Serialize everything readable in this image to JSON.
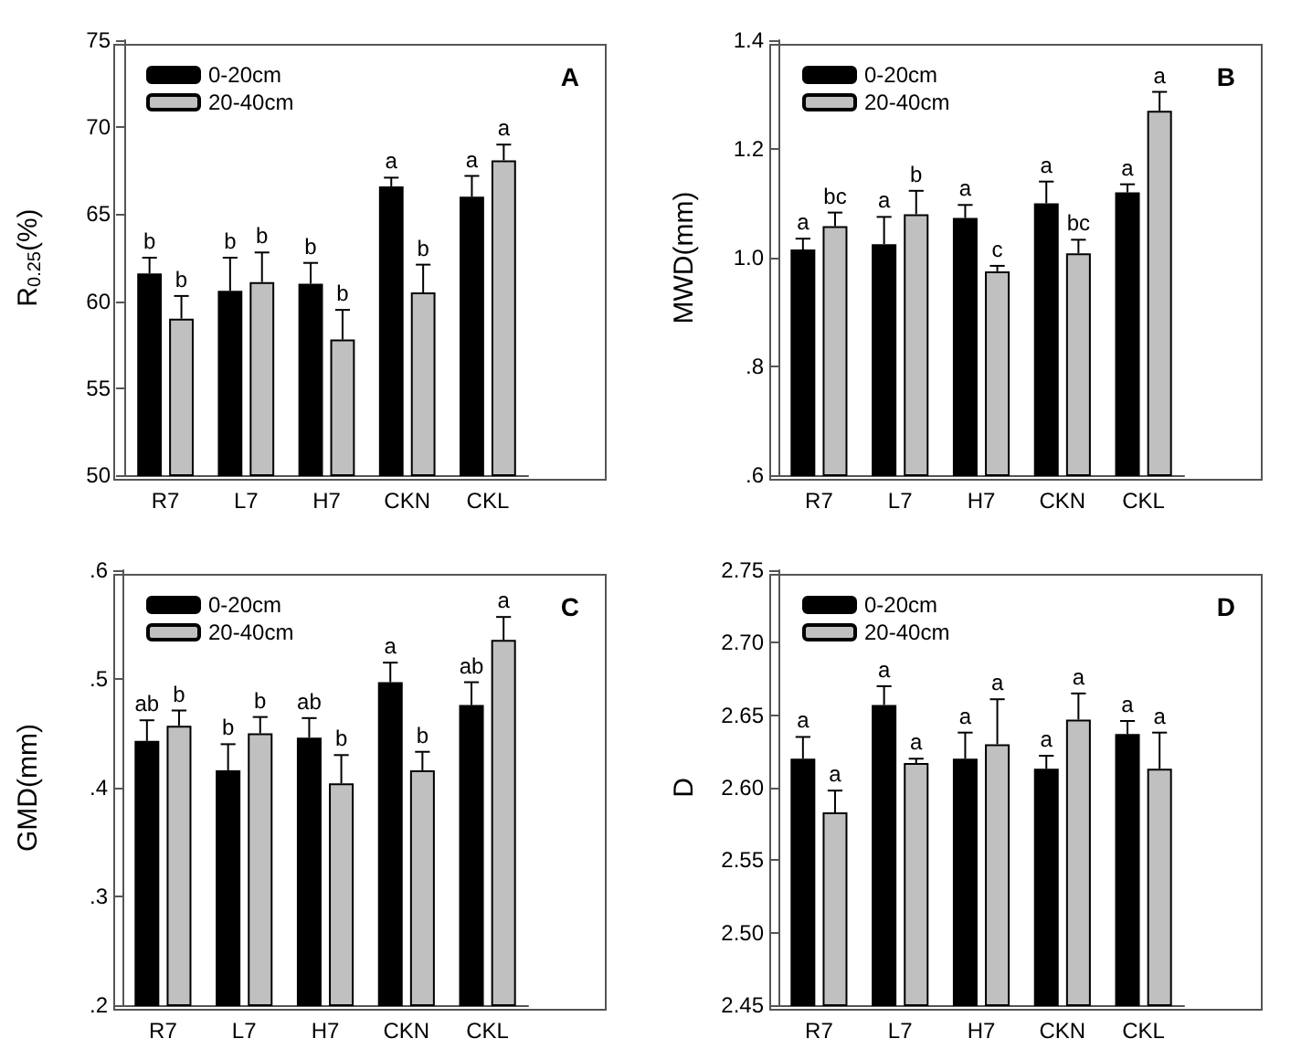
{
  "chart_data": [
    {
      "type": "bar",
      "categories": [
        "R7",
        "L7",
        "H7",
        "CKN",
        "CKL"
      ],
      "ylabel": "R$_{0.25}$(%)",
      "annotations": [
        "A"
      ],
      "ylim": [
        50,
        75
      ],
      "yticks": [
        50,
        55,
        60,
        65,
        70,
        75
      ],
      "grid": false,
      "legend": "top left",
      "series": [
        {
          "name": "0-20cm",
          "color": "#000000",
          "values": [
            61.6,
            60.6,
            61.0,
            66.6,
            66.0
          ],
          "errors": [
            0.9,
            1.9,
            1.2,
            0.5,
            1.2
          ],
          "value_labels": [
            "b",
            "b",
            "b",
            "a",
            "a"
          ]
        },
        {
          "name": "20-40cm",
          "color": "#c0c0c0",
          "values": [
            59.0,
            61.1,
            57.8,
            60.5,
            68.1
          ],
          "errors": [
            1.3,
            1.7,
            1.7,
            1.6,
            0.9
          ],
          "value_labels": [
            "b",
            "b",
            "b",
            "b",
            "a"
          ]
        }
      ]
    },
    {
      "type": "bar",
      "categories": [
        "R7",
        "L7",
        "H7",
        "CKN",
        "CKL"
      ],
      "ylabel": "MWD(mm)",
      "annotations": [
        "B"
      ],
      "ylim": [
        0.6,
        1.4
      ],
      "yticks": [
        {
          "value": 0.6,
          "label": ".6"
        },
        {
          "value": 0.8,
          "label": ".8"
        },
        {
          "value": 1.0,
          "label": "1.0"
        },
        {
          "value": 1.2,
          "label": "1.2"
        },
        {
          "value": 1.4,
          "label": "1.4"
        }
      ],
      "grid": false,
      "legend": "top left",
      "series": [
        {
          "name": "0-20cm",
          "color": "#000000",
          "values": [
            1.015,
            1.025,
            1.073,
            1.1,
            1.12
          ],
          "errors": [
            0.02,
            0.05,
            0.024,
            0.04,
            0.015
          ],
          "value_labels": [
            "a",
            "a",
            "a",
            "a",
            "a"
          ]
        },
        {
          "name": "20-40cm",
          "color": "#c0c0c0",
          "values": [
            1.058,
            1.08,
            0.975,
            1.008,
            1.27
          ],
          "errors": [
            0.025,
            0.043,
            0.01,
            0.025,
            0.035
          ],
          "value_labels": [
            "bc",
            "b",
            "c",
            "bc",
            "a"
          ]
        }
      ]
    },
    {
      "type": "bar",
      "categories": [
        "R7",
        "L7",
        "H7",
        "CKN",
        "CKL"
      ],
      "ylabel": "GMD(mm)",
      "annotations": [
        "C"
      ],
      "ylim": [
        0.2,
        0.6
      ],
      "yticks": [
        {
          "value": 0.2,
          "label": ".2"
        },
        {
          "value": 0.3,
          "label": ".3"
        },
        {
          "value": 0.4,
          "label": ".4"
        },
        {
          "value": 0.5,
          "label": ".5"
        },
        {
          "value": 0.6,
          "label": ".6"
        }
      ],
      "grid": false,
      "legend": "top left",
      "series": [
        {
          "name": "0-20cm",
          "color": "#000000",
          "values": [
            0.443,
            0.416,
            0.446,
            0.497,
            0.476
          ],
          "errors": [
            0.019,
            0.024,
            0.018,
            0.018,
            0.021
          ],
          "value_labels": [
            "ab",
            "b",
            "ab",
            "a",
            "ab"
          ]
        },
        {
          "name": "20-40cm",
          "color": "#c0c0c0",
          "values": [
            0.457,
            0.45,
            0.404,
            0.416,
            0.536
          ],
          "errors": [
            0.014,
            0.015,
            0.026,
            0.017,
            0.021
          ],
          "value_labels": [
            "b",
            "b",
            "b",
            "b",
            "a"
          ]
        }
      ]
    },
    {
      "type": "bar",
      "categories": [
        "R7",
        "L7",
        "H7",
        "CKN",
        "CKL"
      ],
      "ylabel": "D",
      "annotations": [
        "D"
      ],
      "ylim": [
        2.45,
        2.75
      ],
      "yticks": [
        {
          "value": 2.45,
          "label": "2.45"
        },
        {
          "value": 2.5,
          "label": "2.50"
        },
        {
          "value": 2.55,
          "label": "2.55"
        },
        {
          "value": 2.6,
          "label": "2.60"
        },
        {
          "value": 2.65,
          "label": "2.65"
        },
        {
          "value": 2.7,
          "label": "2.70"
        },
        {
          "value": 2.75,
          "label": "2.75"
        }
      ],
      "grid": false,
      "legend": "top left",
      "series": [
        {
          "name": "0-20cm",
          "color": "#000000",
          "values": [
            2.62,
            2.657,
            2.62,
            2.613,
            2.637
          ],
          "errors": [
            0.015,
            0.013,
            0.018,
            0.009,
            0.009
          ],
          "value_labels": [
            "a",
            "a",
            "a",
            "a",
            "a"
          ]
        },
        {
          "name": "20-40cm",
          "color": "#c0c0c0",
          "values": [
            2.583,
            2.617,
            2.63,
            2.647,
            2.613
          ],
          "errors": [
            0.015,
            0.003,
            0.031,
            0.018,
            0.025
          ],
          "value_labels": [
            "a",
            "a",
            "a",
            "a",
            "a"
          ]
        }
      ]
    }
  ]
}
